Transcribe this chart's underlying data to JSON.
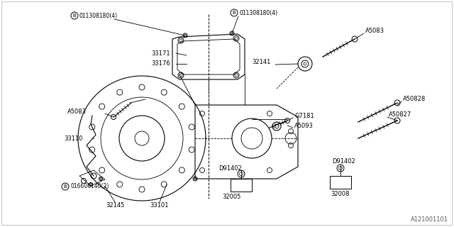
{
  "bg_color": "#ffffff",
  "line_color": "#000000",
  "fig_width": 6.4,
  "fig_height": 3.2,
  "dpi": 100,
  "watermark": "A121001101",
  "labels": {
    "b_top_left": "011308180(4)",
    "b_top_center": "011308180(4)",
    "b_bottom_left": "016606140(2)",
    "33171": "33171",
    "33176": "33176",
    "33110": "33110",
    "32141": "32141",
    "32145": "32145",
    "33101": "33101",
    "32005": "32005",
    "32008": "32008",
    "D91402_left": "D91402",
    "D91402_right": "D91402",
    "A5083_tr": "A5083",
    "A5083_left": "A5083",
    "A5093": "A5093",
    "A50827": "A50827",
    "A50828": "A50828",
    "G7181": "G7181"
  }
}
